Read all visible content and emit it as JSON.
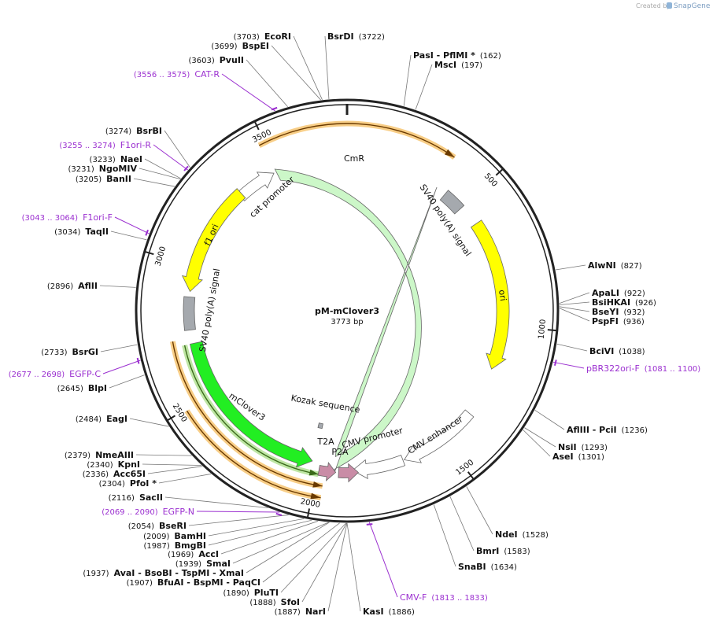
{
  "header": {
    "created_by": "Created by",
    "brand": "SnapGene"
  },
  "plasmid": {
    "name": "pM-mClover3",
    "length": "3773 bp"
  },
  "ruler": [
    "500",
    "1000",
    "1500",
    "2000",
    "2500",
    "3000",
    "3500"
  ],
  "features": [
    "CmR",
    "cat promoter",
    "SV40 poly(A) signal",
    "ori",
    "CMV enhancer",
    "CMV promoter",
    "P2A",
    "T2A",
    "Kozak sequence",
    "mClover3",
    "SV40 poly(A) signal",
    "f1 ori"
  ],
  "sites": [
    {
      "name": "EcoRI",
      "position": "(3703)"
    },
    {
      "name": "BsrDI",
      "position": "(3722)"
    },
    {
      "name": "BspEI",
      "position": "(3699)"
    },
    {
      "name": "PasI - PflMI *",
      "position": "(162)"
    },
    {
      "name": "MscI",
      "position": "(197)"
    },
    {
      "name": "PvuII",
      "position": "(3603)"
    },
    {
      "name": "BsrBI",
      "position": "(3274)"
    },
    {
      "name": "NaeI",
      "position": "(3233)"
    },
    {
      "name": "NgoMIV",
      "position": "(3231)"
    },
    {
      "name": "BanII",
      "position": "(3205)"
    },
    {
      "name": "TaqII",
      "position": "(3034)"
    },
    {
      "name": "AflII",
      "position": "(2896)"
    },
    {
      "name": "AlwNI",
      "position": "(827)"
    },
    {
      "name": "ApaLI",
      "position": "(922)"
    },
    {
      "name": "BsiHKAI",
      "position": "(926)"
    },
    {
      "name": "BseYI",
      "position": "(932)"
    },
    {
      "name": "PspFI",
      "position": "(936)"
    },
    {
      "name": "BciVI",
      "position": "(1038)"
    },
    {
      "name": "BsrGI",
      "position": "(2733)"
    },
    {
      "name": "BlpI",
      "position": "(2645)"
    },
    {
      "name": "AflIII - PciI",
      "position": "(1236)"
    },
    {
      "name": "NsiI",
      "position": "(1293)"
    },
    {
      "name": "AseI",
      "position": "(1301)"
    },
    {
      "name": "EagI",
      "position": "(2484)"
    },
    {
      "name": "NmeAIII",
      "position": "(2379)"
    },
    {
      "name": "KpnI",
      "position": "(2340)"
    },
    {
      "name": "Acc65I",
      "position": "(2336)"
    },
    {
      "name": "PfoI *",
      "position": "(2304)"
    },
    {
      "name": "SacII",
      "position": "(2116)"
    },
    {
      "name": "BseRI",
      "position": "(2054)"
    },
    {
      "name": "BamHI",
      "position": "(2009)"
    },
    {
      "name": "BmgBI",
      "position": "(1987)"
    },
    {
      "name": "AccI",
      "position": "(1969)"
    },
    {
      "name": "SmaI",
      "position": "(1939)"
    },
    {
      "name": "AvaI - BsoBI - TspMI - XmaI",
      "position": "(1937)"
    },
    {
      "name": "BfuAI - BspMI - PaqCI",
      "position": "(1907)"
    },
    {
      "name": "PluTI",
      "position": "(1890)"
    },
    {
      "name": "SfoI",
      "position": "(1888)"
    },
    {
      "name": "NarI",
      "position": "(1887)"
    },
    {
      "name": "NdeI",
      "position": "(1528)"
    },
    {
      "name": "BmrI",
      "position": "(1583)"
    },
    {
      "name": "SnaBI",
      "position": "(1634)"
    },
    {
      "name": "KasI",
      "position": "(1886)"
    }
  ],
  "primers": [
    {
      "name": "CAT-R",
      "range": "(3556 .. 3575)"
    },
    {
      "name": "F1ori-R",
      "range": "(3255 .. 3274)"
    },
    {
      "name": "F1ori-F",
      "range": "(3043 .. 3064)"
    },
    {
      "name": "EGFP-C",
      "range": "(2677 .. 2698)"
    },
    {
      "name": "EGFP-N",
      "range": "(2069 .. 2090)"
    },
    {
      "name": "pBR322ori-F",
      "range": "(1081 .. 1100)"
    },
    {
      "name": "CMV-F",
      "range": "(1813 .. 1833)"
    }
  ]
}
